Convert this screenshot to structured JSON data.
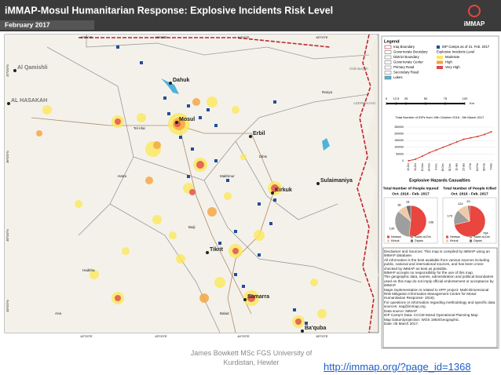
{
  "header": {
    "title": "iMMAP-Mosul Humanitarian Response: Explosive Incidents Risk Level",
    "subtitle": "February 2017",
    "logo": "iMMAP"
  },
  "map": {
    "lon_labels": [
      "42°0'0\"E",
      "43°0'0\"E",
      "44°0'0\"E",
      "45°0'0\"E"
    ],
    "lat_labels": [
      "37°0'0\"N",
      "36°0'0\"N",
      "35°0'0\"N",
      "34°0'0\"N"
    ],
    "places": [
      "Al Qamishli",
      "AL HASAKAH",
      "Dahuk",
      "Mosul",
      "Erbil",
      "Kirkuk",
      "Sulaimaniya",
      "Samarra",
      "Ba'quba",
      "Tikrit",
      "Tel Afar",
      "Hatra",
      "Baiji",
      "Makhmur",
      "Dibis",
      "Ranya",
      "Ana",
      "Haditha",
      "Balad",
      "AZERBAIJAN",
      "Oshnaviyeh"
    ]
  },
  "legend": {
    "title": "Legend",
    "items": [
      "Iraq Boundary",
      "Governorate Boundary",
      "District Boundary",
      "Governorate Center",
      "Primary Road",
      "Secondary Road",
      "Lakes"
    ],
    "camps": "IDP Camps as of 21. Feb. 2017",
    "level_title": "Explosive Incidents Level",
    "levels": [
      "Moderate",
      "High",
      "Very High"
    ],
    "scale": [
      0,
      12.5,
      25,
      50,
      75,
      100
    ],
    "scale_unit": "Km"
  },
  "chart_data": [
    {
      "type": "line",
      "title": "Total Number of IDPs from 19th October 2016 - 5th March 2017",
      "categories": [
        "19-Oct",
        "31-Oct",
        "12-Nov",
        "24-Nov",
        "6-Dec",
        "18-Dec",
        "30-Dec",
        "11-Jan",
        "23-Jan",
        "4-Feb",
        "16-Feb",
        "28-Feb",
        "5-Mar"
      ],
      "values": [
        1000,
        12000,
        35000,
        60000,
        80000,
        100000,
        120000,
        140000,
        160000,
        170000,
        180000,
        195000,
        215000
      ],
      "color": "#d9342b",
      "ylim": [
        0,
        250000
      ],
      "yticks": [
        0,
        50000,
        100000,
        150000,
        200000,
        250000
      ]
    },
    {
      "type": "pie",
      "title": "Total Number of People Injured",
      "subtitle": "Oct. 2016 - Feb. 2017",
      "categories": [
        "Ninewa",
        "Salah al-Din",
        "Kirkuk",
        "Diyala"
      ],
      "values": [
        196,
        130,
        36,
        18
      ],
      "colors": [
        "#e8463e",
        "#9e9e9e",
        "#f2c9a8",
        "#6d6d6d"
      ]
    },
    {
      "type": "pie",
      "title": "Total Number of People Killed",
      "subtitle": "Oct. 2016 - Feb. 2017",
      "categories": [
        "Ninewa",
        "Salah al-Din",
        "Kirkuk",
        "Diyala"
      ],
      "values": [
        784,
        170,
        124,
        20
      ],
      "colors": [
        "#e8463e",
        "#9e9e9e",
        "#f2c9a8",
        "#6d6d6d"
      ]
    }
  ],
  "casualties_title": "Explosive Hazards Casualties",
  "disclaimer": [
    "Disclaimer and Sources: This map is compiled by iMMAP using an iMMAP database.",
    "All information is the best available from various sources including public, national and international sources, and has been cross-checked by iMMAP as best as possible.",
    "iMMAP accepts no responsibility for the use of this map.",
    "The geographic data, names, administration and political boundaries used on this map do not imply official endorsement or acceptance by iMMAP.",
    "Maps implementation is related to HPF project: Multi-Dimensional Risk Mitigation Information Management Centre for Mosul Humanitarian Response- 2016).",
    "For questions or information regarding methodology and specific data sources: iraq@immap.org",
    "Data source: iMMAP",
    "IDP Camp's Data: CCCM Mosul Operational Planning Map",
    "Map Datum/projection: WGS 1984/Geographic.",
    "Date: 05 March 2017."
  ],
  "author": "James Bowkett MSc FGS University of Kurdistan, Hewler",
  "url": "http://immap.org/?page_id=1368"
}
